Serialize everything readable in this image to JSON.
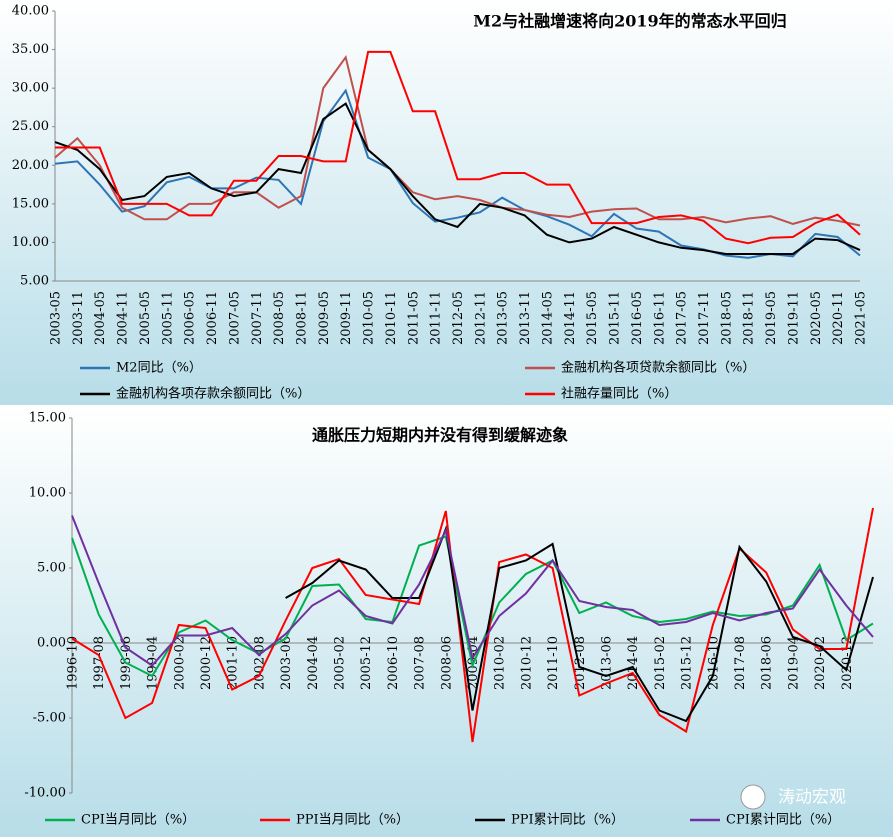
{
  "chart_data": [
    {
      "type": "line",
      "title": "M2与社融增速将向2019年的常态水平回归",
      "categories": [
        "2003-05",
        "2003-11",
        "2004-05",
        "2004-11",
        "2005-05",
        "2005-11",
        "2006-05",
        "2006-11",
        "2007-05",
        "2007-11",
        "2008-05",
        "2008-11",
        "2009-05",
        "2009-11",
        "2010-05",
        "2010-11",
        "2011-05",
        "2011-11",
        "2012-05",
        "2012-11",
        "2013-05",
        "2013-11",
        "2014-05",
        "2014-11",
        "2015-05",
        "2015-11",
        "2016-05",
        "2016-11",
        "2017-05",
        "2017-11",
        "2018-05",
        "2018-11",
        "2019-05",
        "2019-11",
        "2020-05",
        "2020-11",
        "2021-05"
      ],
      "series": [
        {
          "name": "M2同比（%）",
          "color": "#2e75b6",
          "values": [
            20.2,
            20.5,
            17.5,
            14.0,
            14.7,
            17.8,
            18.5,
            17.0,
            17.0,
            18.4,
            18.1,
            15.0,
            25.7,
            29.7,
            21.0,
            19.5,
            15.1,
            12.7,
            13.2,
            13.9,
            15.8,
            14.2,
            13.4,
            12.3,
            10.8,
            13.7,
            11.8,
            11.4,
            9.6,
            9.1,
            8.3,
            8.0,
            8.5,
            8.2,
            11.1,
            10.7,
            8.3
          ]
        },
        {
          "name": "金融机构各项贷款余额同比（%）",
          "color": "#c0504d",
          "values": [
            21.0,
            23.5,
            20.0,
            14.5,
            13.0,
            13.0,
            15.0,
            15.0,
            16.5,
            16.5,
            14.5,
            16.0,
            30.0,
            34.0,
            22.0,
            19.5,
            16.5,
            15.6,
            16.0,
            15.5,
            14.5,
            14.2,
            13.6,
            13.3,
            14.0,
            14.3,
            14.4,
            13.0,
            13.0,
            13.3,
            12.6,
            13.1,
            13.4,
            12.4,
            13.2,
            12.8,
            12.2
          ]
        },
        {
          "name": "金融机构各项存款余额同比（%）",
          "color": "#000000",
          "values": [
            23.0,
            22.0,
            19.5,
            15.5,
            16.0,
            18.5,
            19.0,
            17.0,
            16.0,
            16.5,
            19.5,
            19.0,
            26.0,
            28.0,
            22.0,
            19.5,
            16.0,
            13.0,
            12.0,
            15.0,
            14.5,
            13.5,
            11.0,
            10.0,
            10.5,
            12.0,
            11.0,
            10.0,
            9.3,
            9.0,
            8.5,
            8.5,
            8.5,
            8.5,
            10.5,
            10.3,
            9.0
          ]
        },
        {
          "name": "社融存量同比（%）",
          "color": "#ff0000",
          "values": [
            22.3,
            22.3,
            22.3,
            15.0,
            15.0,
            15.0,
            13.5,
            13.5,
            18.0,
            18.0,
            21.2,
            21.2,
            20.5,
            20.5,
            34.7,
            34.7,
            27.0,
            27.0,
            18.2,
            18.2,
            19.0,
            19.0,
            17.5,
            17.5,
            12.5,
            12.5,
            12.5,
            13.3,
            13.5,
            12.8,
            10.5,
            9.9,
            10.6,
            10.7,
            12.5,
            13.6,
            11.0
          ]
        }
      ],
      "ylim": [
        5,
        40
      ],
      "yticks": [
        {
          "value": 5,
          "label": "5.00"
        },
        {
          "value": 10,
          "label": "10.00"
        },
        {
          "value": 15,
          "label": "15.00"
        },
        {
          "value": 20,
          "label": "20.00"
        },
        {
          "value": 25,
          "label": "25.00"
        },
        {
          "value": 30,
          "label": "30.00"
        },
        {
          "value": 35,
          "label": "35.00"
        },
        {
          "value": 40,
          "label": "40.00"
        }
      ]
    },
    {
      "type": "line",
      "title": "通胀压力短期内并没有得到缓解迹象",
      "categories": [
        "1996-10",
        "1997-08",
        "1998-06",
        "1999-04",
        "2000-02",
        "2000-12",
        "2001-10",
        "2002-08",
        "2003-06",
        "2004-04",
        "2005-02",
        "2005-12",
        "2006-10",
        "2007-08",
        "2008-06",
        "2009-04",
        "2010-02",
        "2010-12",
        "2011-10",
        "2012-08",
        "2013-06",
        "2014-04",
        "2015-02",
        "2015-12",
        "2016-10",
        "2017-08",
        "2018-06",
        "2019-04",
        "2020-02",
        "2020-12",
        null
      ],
      "series": [
        {
          "name": "CPI当月同比（%）",
          "color": "#00b050",
          "values": [
            7.0,
            1.9,
            -1.3,
            -2.2,
            0.7,
            1.5,
            0.2,
            -0.7,
            0.3,
            3.8,
            3.9,
            1.6,
            1.4,
            6.5,
            7.1,
            -1.5,
            2.7,
            4.6,
            5.5,
            2.0,
            2.7,
            1.8,
            1.4,
            1.6,
            2.1,
            1.8,
            1.9,
            2.5,
            5.2,
            0.2,
            1.3
          ]
        },
        {
          "name": "PPI当月同比（%）",
          "color": "#ff0000",
          "values": [
            0.3,
            -0.8,
            -5.0,
            -4.0,
            1.2,
            1.0,
            -3.1,
            -2.2,
            1.5,
            5.0,
            5.6,
            3.2,
            2.9,
            2.6,
            8.8,
            -6.6,
            5.4,
            5.9,
            5.0,
            -3.5,
            -2.7,
            -2.0,
            -4.8,
            -5.9,
            1.2,
            6.3,
            4.7,
            0.9,
            -0.4,
            -0.4,
            9.0
          ]
        },
        {
          "name": "PPI累计同比（%）",
          "color": "#000000",
          "values": [
            null,
            null,
            null,
            null,
            null,
            null,
            null,
            null,
            3.0,
            4.0,
            5.5,
            4.9,
            3.0,
            3.0,
            7.6,
            -4.5,
            5.0,
            5.5,
            6.6,
            -1.6,
            -2.2,
            -1.6,
            -4.5,
            -5.2,
            -2.2,
            6.4,
            4.1,
            0.4,
            -0.2,
            -1.8,
            4.4
          ]
        },
        {
          "name": "CPI累计同比（%）",
          "color": "#7030a0",
          "values": [
            8.5,
            4.0,
            -0.3,
            -1.5,
            0.5,
            0.5,
            1.0,
            -0.8,
            0.6,
            2.5,
            3.5,
            1.8,
            1.3,
            3.9,
            7.5,
            -1.0,
            1.8,
            3.3,
            5.5,
            2.8,
            2.4,
            2.2,
            1.2,
            1.4,
            2.0,
            1.5,
            2.0,
            2.3,
            4.9,
            2.5,
            0.4
          ]
        }
      ],
      "ylim": [
        -10,
        15
      ],
      "yticks": [
        {
          "value": -10,
          "label": "-10.00"
        },
        {
          "value": -5,
          "label": "-5.00"
        },
        {
          "value": 0,
          "label": "0.00"
        },
        {
          "value": 5,
          "label": "5.00"
        },
        {
          "value": 10,
          "label": "10.00"
        },
        {
          "value": 15,
          "label": "15.00"
        }
      ]
    }
  ],
  "watermark": "涛动宏观"
}
